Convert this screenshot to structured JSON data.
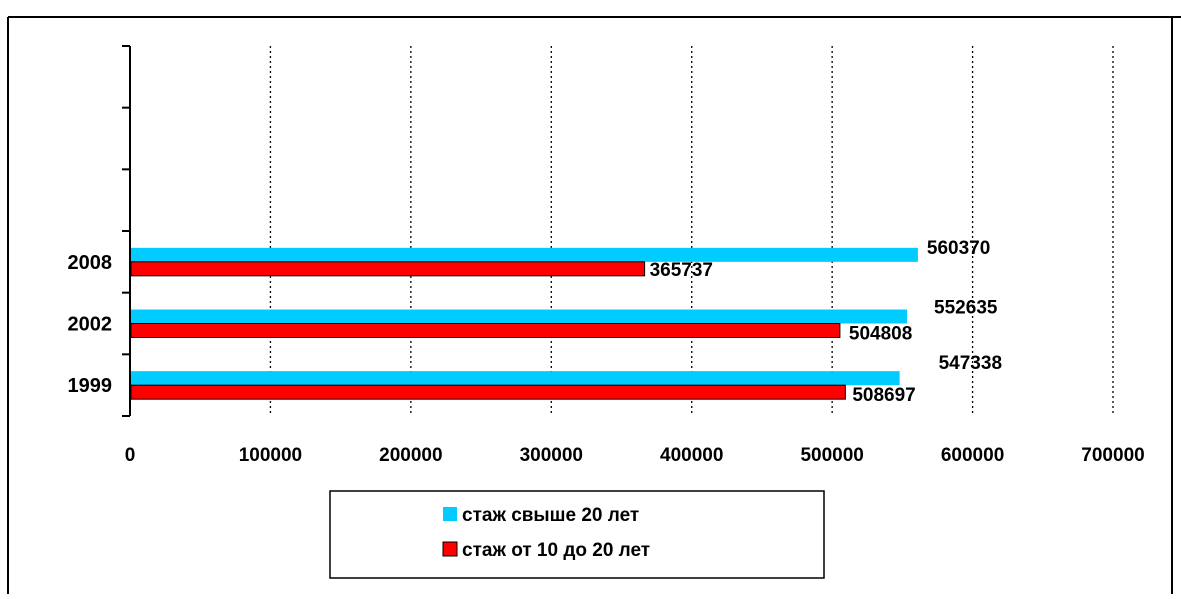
{
  "chart_data": {
    "type": "bar",
    "orientation": "horizontal",
    "categories": [
      "1999",
      "2002",
      "2008",
      "",
      "",
      ""
    ],
    "series": [
      {
        "name": "стаж свыше 20 лет",
        "values": [
          547338,
          552635,
          560370,
          null,
          null,
          null
        ],
        "color": "#00CCFF"
      },
      {
        "name": "стаж от 10 до 20 лет",
        "values": [
          508697,
          504808,
          365737,
          null,
          null,
          null
        ],
        "color": "#FF0000"
      }
    ],
    "xticks": [
      "0",
      "100000",
      "200000",
      "300000",
      "400000",
      "500000",
      "600000",
      "700000"
    ],
    "xlim": [
      0,
      700000
    ],
    "grid": "vertical dotted",
    "legend_position": "bottom",
    "title": "",
    "xlabel": "",
    "ylabel": ""
  }
}
